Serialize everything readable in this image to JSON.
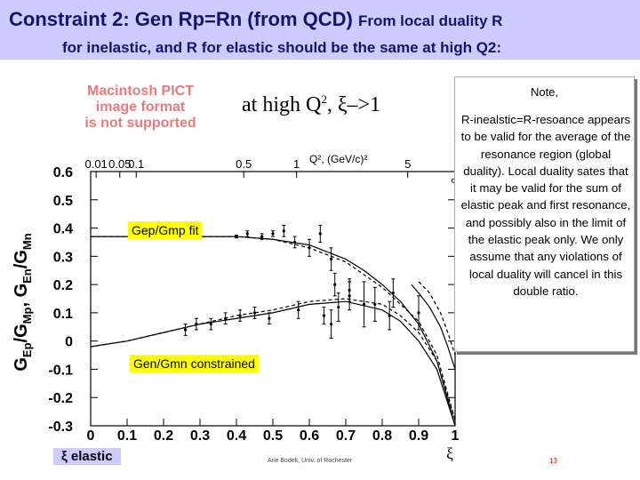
{
  "title": {
    "line1_main": "Constraint 2: Gen  Rp=Rn (from QCD) ",
    "line1_small": "From local duality R",
    "line2": "for inelastic,  and R for elastic should be the same at high Q2:"
  },
  "pict_message": [
    "Macintosh PICT",
    "image format",
    "is not supported"
  ],
  "at_high": {
    "text": "at high Q",
    "sup": "2",
    "rest": ", ξ–>1"
  },
  "note": {
    "title": "Note,",
    "body": "R-inealstic=R-resoance appears to be valid for the average of the resonance region (global duality).  Local duality sates that it may be valid for the sum of elastic peak and first resonance, and possibly also in the limit of  the elastic peak only.  We only assume that any violations of local duality will cancel in this double ratio."
  },
  "labels": {
    "gep": "Gep/Gmp fit",
    "gen": "Gen/Gmn constrained",
    "xi_elastic": "ξ elastic"
  },
  "footer": "Arie Bodek, Univ. of Rochester",
  "page_number": "13",
  "colors": {
    "title_bg": "#ccccff",
    "title_text": "#14146e",
    "label_bg": "#ffff00",
    "pict_text": "#e87a7a",
    "page_num": "#ff0000"
  },
  "chart_data": {
    "type": "scatter",
    "ylabel_parts": [
      "G",
      "Ep",
      "/G",
      "Mp",
      ", G",
      "En",
      "/G",
      "Mn"
    ],
    "xlabel": "ξ",
    "xlim": [
      0,
      1
    ],
    "ylim": [
      -0.3,
      0.6
    ],
    "x_ticks": [
      "0",
      "0.1",
      "0.2",
      "0.3",
      "0.4",
      "0.5",
      "0.6",
      "0.7",
      "0.8",
      "0.9",
      "1"
    ],
    "y_ticks": [
      "-0.3",
      "-0.2",
      "-0.1",
      "0",
      "0.1",
      "0.2",
      "0.3",
      "0.4",
      "0.5",
      "0.6"
    ],
    "top_axis_label": "Q², (GeV/c)²",
    "top_axis_ticks": [
      {
        "label": "0.01",
        "xi": 0.015
      },
      {
        "label": "0.05",
        "xi": 0.08
      },
      {
        "label": "0.1",
        "xi": 0.125
      },
      {
        "label": "0.5",
        "xi": 0.42
      },
      {
        "label": "1",
        "xi": 0.565
      },
      {
        "label": "5",
        "xi": 0.87
      },
      {
        "label": "∞",
        "xi": 1.0
      }
    ],
    "grid": false,
    "series": [
      {
        "role": "gep_fit",
        "style": "solid",
        "x": [
          0,
          0.1,
          0.2,
          0.3,
          0.4,
          0.5,
          0.6,
          0.7,
          0.75,
          0.8,
          0.85,
          0.9,
          0.95,
          1.0
        ],
        "y": [
          0.37,
          0.37,
          0.37,
          0.37,
          0.37,
          0.36,
          0.34,
          0.29,
          0.25,
          0.2,
          0.14,
          0.06,
          -0.07,
          -0.3
        ]
      },
      {
        "role": "gep_fit_dashed",
        "style": "dashed",
        "x": [
          0,
          0.1,
          0.2,
          0.3,
          0.4,
          0.5,
          0.6,
          0.7,
          0.8,
          0.9,
          0.95,
          1.0
        ],
        "y": [
          0.37,
          0.37,
          0.37,
          0.37,
          0.37,
          0.36,
          0.33,
          0.28,
          0.19,
          0.07,
          -0.05,
          -0.28
        ]
      },
      {
        "role": "gen_constrained",
        "style": "solid",
        "x": [
          0,
          0.1,
          0.2,
          0.3,
          0.4,
          0.5,
          0.6,
          0.7,
          0.8,
          0.85,
          0.9,
          0.95,
          1.0
        ],
        "y": [
          -0.02,
          0.0,
          0.03,
          0.06,
          0.08,
          0.1,
          0.13,
          0.14,
          0.11,
          0.07,
          0.0,
          -0.1,
          -0.3
        ]
      },
      {
        "role": "gen_constrained_dashed",
        "style": "dashed",
        "x": [
          0,
          0.1,
          0.2,
          0.3,
          0.4,
          0.5,
          0.6,
          0.7,
          0.8,
          0.85,
          0.9,
          0.95,
          1.0
        ],
        "y": [
          -0.02,
          0.0,
          0.03,
          0.06,
          0.09,
          0.11,
          0.14,
          0.15,
          0.13,
          0.09,
          0.03,
          -0.07,
          -0.28
        ]
      },
      {
        "role": "upper_right_solid",
        "style": "solid",
        "x": [
          0.88,
          0.9,
          0.93,
          0.96,
          0.98,
          1.0
        ],
        "y": [
          0.2,
          0.17,
          0.12,
          0.05,
          -0.02,
          -0.1
        ]
      },
      {
        "role": "upper_right_dashed",
        "style": "dashed",
        "x": [
          0.9,
          0.93,
          0.96,
          0.98,
          1.0
        ],
        "y": [
          0.21,
          0.17,
          0.1,
          0.03,
          -0.05
        ]
      }
    ],
    "gep_points": [
      {
        "x": 0.4,
        "y": 0.37,
        "err": 0.005
      },
      {
        "x": 0.43,
        "y": 0.38,
        "err": 0.01
      },
      {
        "x": 0.47,
        "y": 0.37,
        "err": 0.01
      },
      {
        "x": 0.5,
        "y": 0.38,
        "err": 0.01
      },
      {
        "x": 0.53,
        "y": 0.39,
        "err": 0.02
      },
      {
        "x": 0.56,
        "y": 0.35,
        "err": 0.02
      },
      {
        "x": 0.6,
        "y": 0.33,
        "err": 0.03
      },
      {
        "x": 0.63,
        "y": 0.38,
        "err": 0.03
      },
      {
        "x": 0.66,
        "y": 0.29,
        "err": 0.04
      },
      {
        "x": 0.67,
        "y": 0.2,
        "err": 0.04
      },
      {
        "x": 0.71,
        "y": 0.16,
        "err": 0.05
      },
      {
        "x": 0.78,
        "y": 0.13,
        "err": 0.06
      },
      {
        "x": 0.82,
        "y": 0.09,
        "err": 0.05
      },
      {
        "x": 0.83,
        "y": 0.17,
        "err": 0.05
      },
      {
        "x": 0.9,
        "y": 0.1,
        "err": 0.06
      }
    ],
    "gen_points": [
      {
        "x": 0.26,
        "y": 0.04,
        "err": 0.02
      },
      {
        "x": 0.29,
        "y": 0.06,
        "err": 0.02
      },
      {
        "x": 0.33,
        "y": 0.06,
        "err": 0.02
      },
      {
        "x": 0.37,
        "y": 0.08,
        "err": 0.02
      },
      {
        "x": 0.41,
        "y": 0.09,
        "err": 0.02
      },
      {
        "x": 0.45,
        "y": 0.1,
        "err": 0.02
      },
      {
        "x": 0.49,
        "y": 0.08,
        "err": 0.02
      },
      {
        "x": 0.57,
        "y": 0.11,
        "err": 0.03
      },
      {
        "x": 0.64,
        "y": 0.09,
        "err": 0.03
      },
      {
        "x": 0.66,
        "y": 0.06,
        "err": 0.05
      },
      {
        "x": 0.68,
        "y": 0.12,
        "err": 0.05
      },
      {
        "x": 0.71,
        "y": 0.18,
        "err": 0.04
      },
      {
        "x": 0.75,
        "y": 0.13,
        "err": 0.08
      }
    ]
  }
}
